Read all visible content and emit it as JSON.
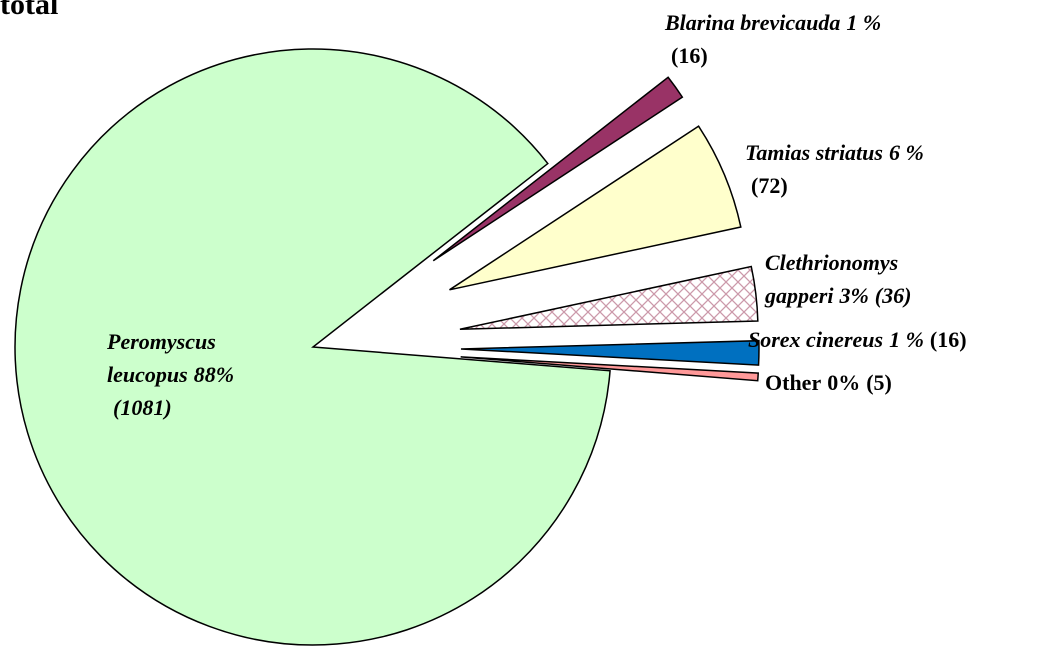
{
  "chart_data": {
    "type": "pie",
    "title": "total",
    "categories": [
      "Peromyscus leucopus",
      "Blarina brevicauda",
      "Tamias striatus",
      "Clethrionomys gapperi",
      "Sorex cinereus",
      "Other"
    ],
    "values": [
      1081,
      16,
      72,
      36,
      16,
      5
    ],
    "value_labels": [
      "(1081)",
      "(16)",
      "(72)",
      "(36)",
      "(16)",
      "(5)"
    ],
    "percent_labels": [
      "88%",
      "1 %",
      "6 %",
      "3%",
      "1 %",
      "0%"
    ],
    "colors": [
      "#ccffcc",
      "#993366",
      "#ffffcc",
      "#cc99aa",
      "#0070c0",
      "#ff9999"
    ]
  }
}
